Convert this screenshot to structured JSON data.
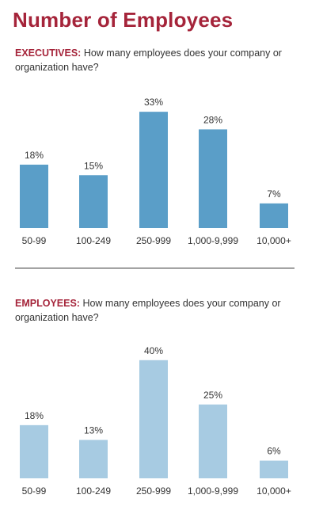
{
  "title": "Number of Employees",
  "colors": {
    "title": "#a5243a",
    "executives_bar": "#5a9ec8",
    "employees_bar": "#a7cbe2"
  },
  "sections": [
    {
      "lead": "EXECUTIVES:",
      "question": " How many employees does your company or organization have?"
    },
    {
      "lead": "EMPLOYEES:",
      "question": " How many employees does your company or organization have?"
    }
  ],
  "chart_data": [
    {
      "type": "bar",
      "categories": [
        "50-99",
        "100-249",
        "250-999",
        "1,000-9,999",
        "10,000+"
      ],
      "values": [
        18,
        15,
        33,
        28,
        7
      ],
      "value_labels": [
        "18%",
        "15%",
        "33%",
        "28%",
        "7%"
      ],
      "title": "",
      "xlabel": "",
      "ylabel": "",
      "unit": "%",
      "ylim": [
        0,
        40
      ],
      "grid": false
    },
    {
      "type": "bar",
      "categories": [
        "50-99",
        "100-249",
        "250-999",
        "1,000-9,999",
        "10,000+"
      ],
      "values": [
        18,
        13,
        40,
        25,
        6
      ],
      "value_labels": [
        "18%",
        "13%",
        "40%",
        "25%",
        "6%"
      ],
      "title": "",
      "xlabel": "",
      "ylabel": "",
      "unit": "%",
      "ylim": [
        0,
        40
      ],
      "grid": false
    }
  ]
}
